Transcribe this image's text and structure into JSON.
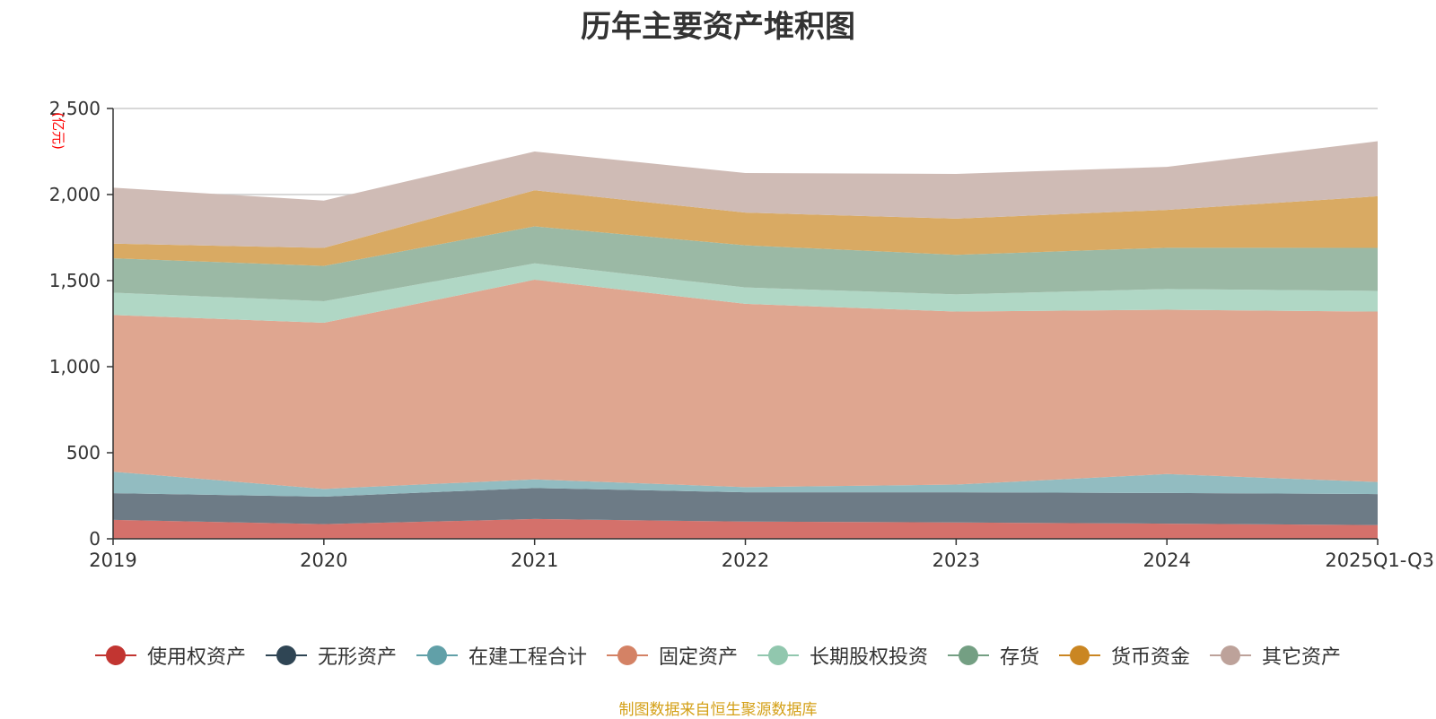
{
  "chart_data": {
    "type": "area",
    "stacked": true,
    "title": "历年主要资产堆积图",
    "unit_label": "(亿元)",
    "categories": [
      "2019",
      "2020",
      "2021",
      "2022",
      "2023",
      "2024",
      "2025Q1-Q3"
    ],
    "ylim": [
      0,
      2500
    ],
    "yticks": [
      0,
      500,
      1000,
      1500,
      2000,
      2500
    ],
    "ytick_labels": [
      "0",
      "500",
      "1,000",
      "1,500",
      "2,000",
      "2,500"
    ],
    "grid": true,
    "legend_position": "bottom",
    "series": [
      {
        "name": "使用权资产",
        "color": "#c23531",
        "fill": "#d4716b",
        "values": [
          110,
          85,
          115,
          100,
          95,
          88,
          80
        ]
      },
      {
        "name": "无形资产",
        "color": "#2f4554",
        "fill": "#6d7b86",
        "values": [
          155,
          160,
          180,
          170,
          175,
          178,
          180
        ]
      },
      {
        "name": "在建工程合计",
        "color": "#61a0a8",
        "fill": "#92bcc1",
        "values": [
          125,
          45,
          50,
          30,
          45,
          110,
          70
        ]
      },
      {
        "name": "固定资产",
        "color": "#d48265",
        "fill": "#dfa690",
        "values": [
          910,
          965,
          1160,
          1065,
          1005,
          955,
          990
        ]
      },
      {
        "name": "长期股权投资",
        "color": "#91c7ae",
        "fill": "#b0d7c5",
        "values": [
          130,
          125,
          95,
          95,
          100,
          120,
          120
        ]
      },
      {
        "name": "存货",
        "color": "#749f83",
        "fill": "#9bb9a5",
        "values": [
          200,
          205,
          215,
          245,
          230,
          240,
          250
        ]
      },
      {
        "name": "货币资金",
        "color": "#ca8622",
        "fill": "#d9aa63",
        "values": [
          85,
          105,
          210,
          190,
          210,
          220,
          300
        ]
      },
      {
        "name": "其它资产",
        "color": "#bda29a",
        "fill": "#cfbbb5",
        "values": [
          325,
          275,
          225,
          230,
          260,
          250,
          320
        ]
      }
    ]
  },
  "footer": {
    "source": "制图数据来自恒生聚源数据库"
  }
}
